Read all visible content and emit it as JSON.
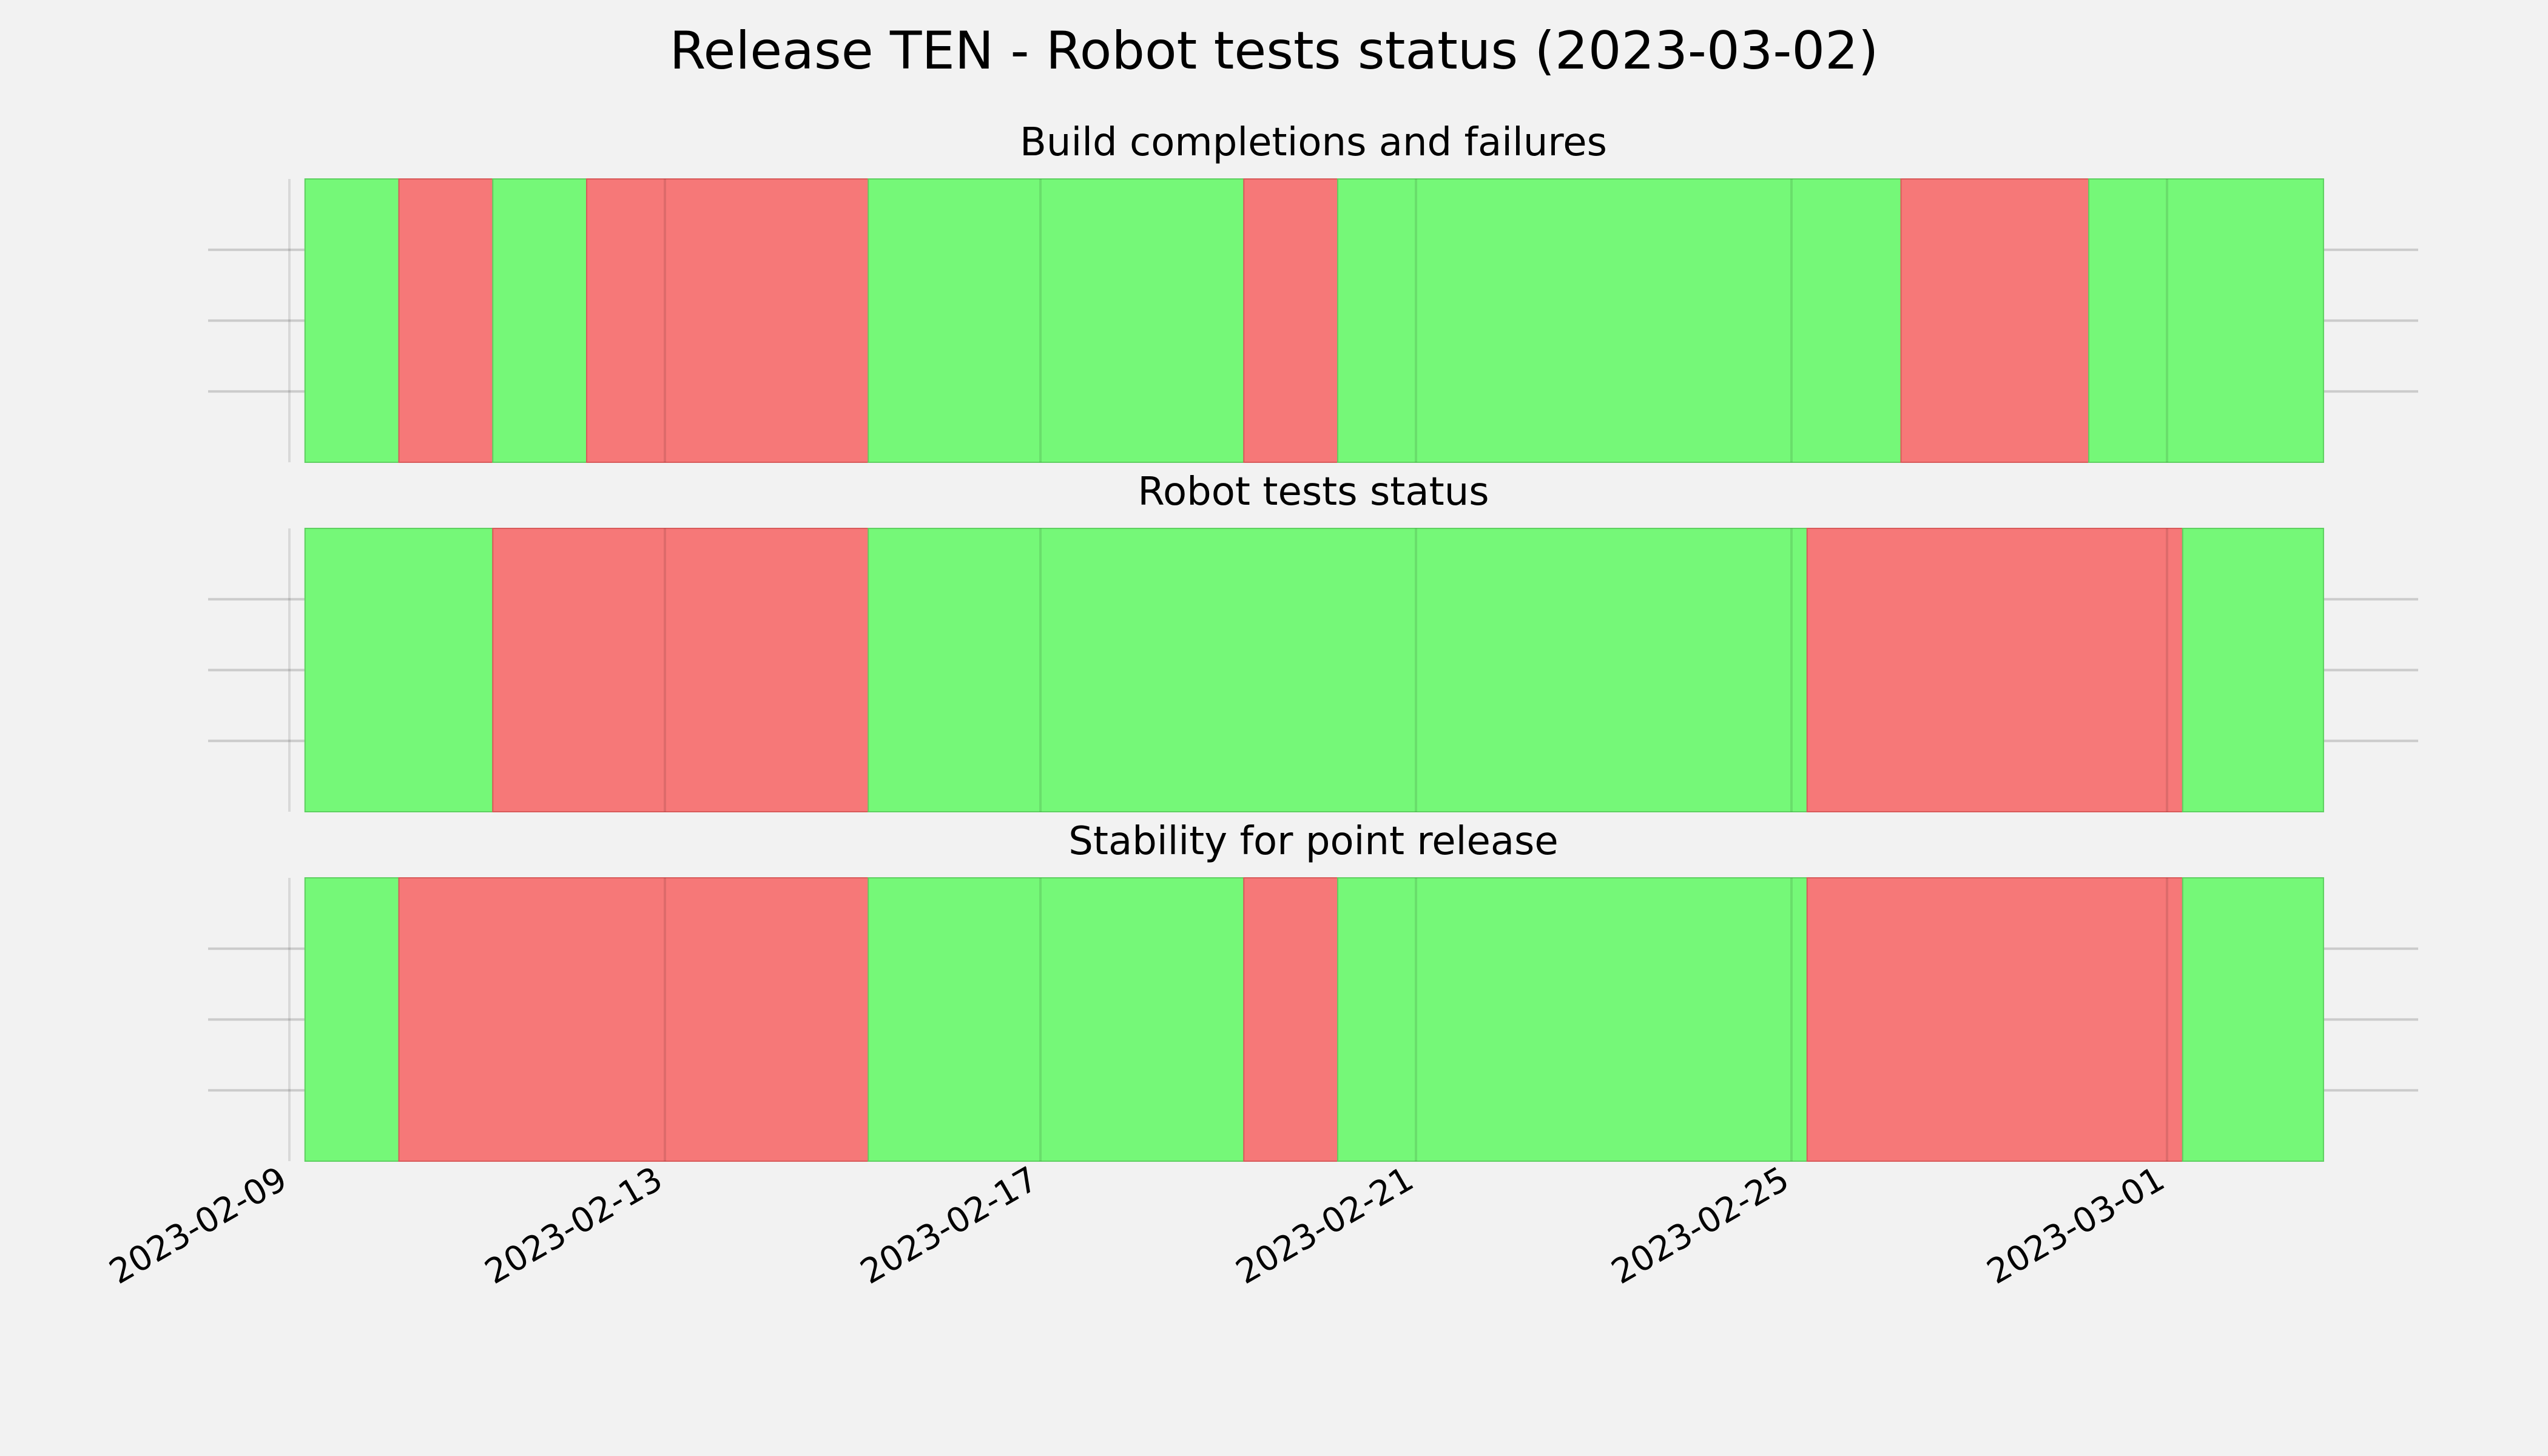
{
  "suptitle": "Release TEN - Robot tests status (2023-03-02)",
  "colors": {
    "background": "#f2f2f2",
    "green": "#75f878",
    "red": "#f67878",
    "green_edge": "#5ed060",
    "red_edge": "#d85a5a",
    "grid": "#cbcbcb"
  },
  "chart_data": {
    "type": "timeline",
    "x_range": [
      "2023-02-09",
      "2023-03-03"
    ],
    "x_ticks": [
      "2023-02-09",
      "2023-02-13",
      "2023-02-17",
      "2023-02-21",
      "2023-02-25",
      "2023-03-01"
    ],
    "grid": true,
    "panels": [
      {
        "title": "Build completions and failures",
        "segments": [
          {
            "start": "2023-02-09 04:00",
            "end": "2023-02-10 04:00",
            "status": "green"
          },
          {
            "start": "2023-02-10 04:00",
            "end": "2023-02-11 04:00",
            "status": "red"
          },
          {
            "start": "2023-02-11 04:00",
            "end": "2023-02-12 04:00",
            "status": "green"
          },
          {
            "start": "2023-02-12 04:00",
            "end": "2023-02-15 04:00",
            "status": "red"
          },
          {
            "start": "2023-02-15 04:00",
            "end": "2023-02-19 04:00",
            "status": "green"
          },
          {
            "start": "2023-02-19 04:00",
            "end": "2023-02-20 04:00",
            "status": "red"
          },
          {
            "start": "2023-02-20 04:00",
            "end": "2023-02-26 04:00",
            "status": "green"
          },
          {
            "start": "2023-02-26 04:00",
            "end": "2023-02-28 04:00",
            "status": "red"
          },
          {
            "start": "2023-02-28 04:00",
            "end": "2023-03-02 16:00",
            "status": "green"
          }
        ]
      },
      {
        "title": "Robot tests status",
        "segments": [
          {
            "start": "2023-02-09 04:00",
            "end": "2023-02-11 04:00",
            "status": "green"
          },
          {
            "start": "2023-02-11 04:00",
            "end": "2023-02-15 04:00",
            "status": "red"
          },
          {
            "start": "2023-02-15 04:00",
            "end": "2023-02-25 04:00",
            "status": "green"
          },
          {
            "start": "2023-02-25 04:00",
            "end": "2023-03-01 04:00",
            "status": "red"
          },
          {
            "start": "2023-03-01 04:00",
            "end": "2023-03-02 16:00",
            "status": "green"
          }
        ]
      },
      {
        "title": "Stability for point release",
        "segments": [
          {
            "start": "2023-02-09 04:00",
            "end": "2023-02-10 04:00",
            "status": "green"
          },
          {
            "start": "2023-02-10 04:00",
            "end": "2023-02-15 04:00",
            "status": "red"
          },
          {
            "start": "2023-02-15 04:00",
            "end": "2023-02-19 04:00",
            "status": "green"
          },
          {
            "start": "2023-02-19 04:00",
            "end": "2023-02-20 04:00",
            "status": "red"
          },
          {
            "start": "2023-02-20 04:00",
            "end": "2023-02-25 04:00",
            "status": "green"
          },
          {
            "start": "2023-02-25 04:00",
            "end": "2023-03-01 04:00",
            "status": "red"
          },
          {
            "start": "2023-03-01 04:00",
            "end": "2023-03-02 16:00",
            "status": "green"
          }
        ]
      }
    ]
  }
}
